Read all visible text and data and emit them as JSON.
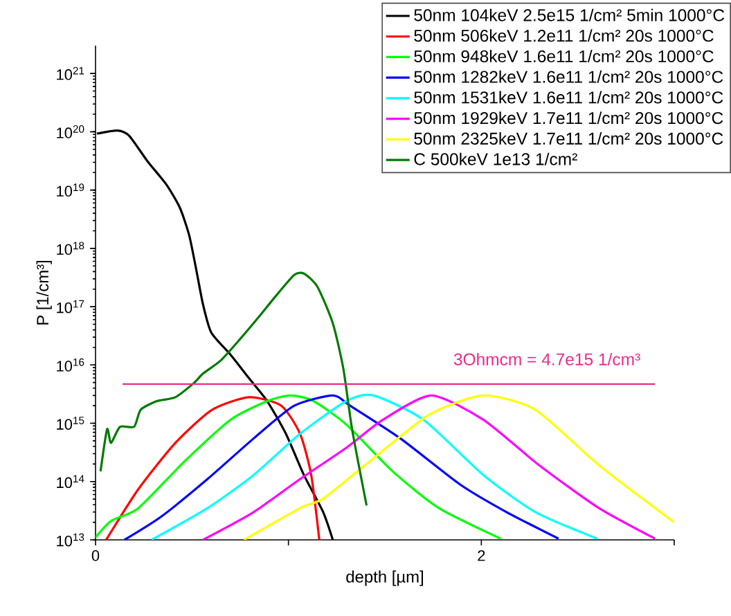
{
  "chart_data": {
    "type": "line",
    "xlabel": "depth [µm]",
    "ylabel": "P [1/cm³]",
    "log": "y",
    "xlim": [
      0,
      3
    ],
    "ylim": [
      10000000000000.0,
      3e+21
    ],
    "xticks": [
      0,
      {
        "value": 1,
        "label": null
      },
      2,
      {
        "value": 3,
        "label": null
      }
    ],
    "yticks": [
      {
        "value": 10000000000000.0,
        "label": "10$^{13}$"
      },
      {
        "value": 100000000000000.0,
        "label": "10$^{14}$"
      },
      {
        "value": 1000000000000000.0,
        "label": "10$^{15}$"
      },
      {
        "value": 1e+16,
        "label": "10$^{16}$"
      },
      {
        "value": 1e+17,
        "label": "10$^{17}$"
      },
      {
        "value": 1e+18,
        "label": "10$^{18}$"
      },
      {
        "value": 1e+19,
        "label": "10$^{19}$"
      },
      {
        "value": 1e+20,
        "label": "10$^{20}$"
      },
      {
        "value": 1e+21,
        "label": "10$^{21}$"
      }
    ],
    "legend": "top right",
    "grid": false,
    "ref_lines": [
      {
        "axis": "y",
        "value": 4700000000000000.0,
        "color": "#ee2a8a"
      }
    ],
    "annotations": [
      "3Ohmcm = 4.7e15 1/cm³"
    ],
    "series": [
      {
        "name": "50nm 104keV 2.5e15 1/cm² 5min 1000°C",
        "color": "#000000",
        "x": [
          0.007,
          0.115,
          0.175,
          0.27,
          0.366,
          0.437,
          0.485,
          0.52,
          0.557,
          0.6,
          0.7,
          0.796,
          0.89,
          0.987,
          1.08,
          1.18,
          1.23
        ],
        "values": [
          9.3e+19,
          1.05e+20,
          8.5e+19,
          3.1e+19,
          1.26e+19,
          5e+18,
          1.7e+18,
          4.7e+17,
          1.1e+17,
          3.6e+16,
          1.5e+16,
          5900000000000000.0,
          2400000000000000.0,
          660000000000000.0,
          130000000000000.0,
          30000000000000.0,
          10000000000000.0
        ]
      },
      {
        "name": "50nm 506keV 1.2e11 1/cm² 20s 1000°C",
        "color": "#ff0000",
        "x": [
          0.055,
          0.222,
          0.414,
          0.604,
          0.796,
          0.963,
          1.06,
          1.118,
          1.16
        ],
        "values": [
          10000000000000.0,
          74000000000000.0,
          460000000000000.0,
          1700000000000000.0,
          2800000000000000.0,
          2000000000000000.0,
          660000000000000.0,
          130000000000000.0,
          10000000000000.0
        ]
      },
      {
        "name": "50nm 948keV 1.6e11 1/cm² 20s 1000°C",
        "color": "#00ff00",
        "x": [
          0,
          0.08,
          0.222,
          0.46,
          0.7,
          0.89,
          1.01,
          1.13,
          1.3,
          1.54,
          1.78,
          2.1
        ],
        "values": [
          11000000000000.0,
          21000000000000.0,
          35000000000000.0,
          220000000000000.0,
          1150000000000000.0,
          2400000000000000.0,
          3000000000000000.0,
          2400000000000000.0,
          950000000000000.0,
          150000000000000.0,
          35000000000000.0,
          10500000000000.0
        ]
      },
      {
        "name": "50nm 1282keV 1.6e11 1/cm² 20s 1000°C",
        "color": "#0000ff",
        "x": [
          0.15,
          0.34,
          0.58,
          0.82,
          1.03,
          1.23,
          1.32,
          1.58,
          1.89,
          2.13,
          2.4
        ],
        "values": [
          10000000000000.0,
          25000000000000.0,
          110000000000000.0,
          550000000000000.0,
          2000000000000000.0,
          3000000000000000.0,
          2000000000000000.0,
          550000000000000.0,
          89000000000000.0,
          30000000000000.0,
          10500000000000.0
        ]
      },
      {
        "name": "50nm 1531keV 1.6e11 1/cm² 20s 1000°C",
        "color": "#00ffff",
        "x": [
          0.29,
          0.58,
          0.82,
          1.06,
          1.3,
          1.44,
          1.7,
          2.01,
          2.28,
          2.6
        ],
        "values": [
          10000000000000.0,
          35000000000000.0,
          130000000000000.0,
          660000000000000.0,
          2400000000000000.0,
          3000000000000000.0,
          1150000000000000.0,
          130000000000000.0,
          30000000000000.0,
          10500000000000.0
        ]
      },
      {
        "name": "50nm 1929keV 1.7e11 1/cm² 20s 1000°C",
        "color": "#ff00ff",
        "x": [
          0.557,
          0.82,
          1.06,
          1.3,
          1.49,
          1.74,
          2.01,
          2.3,
          2.61,
          2.9
        ],
        "values": [
          10000000000000.0,
          30000000000000.0,
          110000000000000.0,
          380000000000000.0,
          1150000000000000.0,
          3000000000000000.0,
          1150000000000000.0,
          190000000000000.0,
          35000000000000.0,
          10500000000000.0
        ]
      },
      {
        "name": "50nm 2325keV 1.7e11 1/cm² 20s 1000°C",
        "color": "#ffff00",
        "x": [
          0.77,
          1.06,
          1.18,
          1.42,
          1.73,
          2.01,
          2.28,
          2.61,
          3.0
        ],
        "values": [
          10000000000000.0,
          35000000000000.0,
          51000000000000.0,
          220000000000000.0,
          1400000000000000.0,
          3000000000000000.0,
          1700000000000000.0,
          190000000000000.0,
          20000000000000.0
        ]
      },
      {
        "name": "C 500keV 1e13 1/cm²",
        "color": "#007a00",
        "x": [
          0.026,
          0.06,
          0.08,
          0.127,
          0.2,
          0.234,
          0.318,
          0.414,
          0.51,
          0.557,
          0.65,
          0.75,
          0.84,
          0.94,
          1.03,
          1.08,
          1.15,
          1.23,
          1.285,
          1.33,
          1.405
        ],
        "values": [
          150000000000000.0,
          790000000000000.0,
          460000000000000.0,
          870000000000000.0,
          870000000000000.0,
          1700000000000000.0,
          2400000000000000.0,
          2800000000000000.0,
          4900000000000000.0,
          7100000000000000.0,
          1.2e+16,
          2.8e+16,
          6.3e+16,
          1.6e+17,
          3.5e+17,
          3.7e+17,
          2.2e+17,
          5.2e+16,
          8500000000000000.0,
          790000000000000.0,
          39000000000000.0
        ]
      }
    ]
  }
}
